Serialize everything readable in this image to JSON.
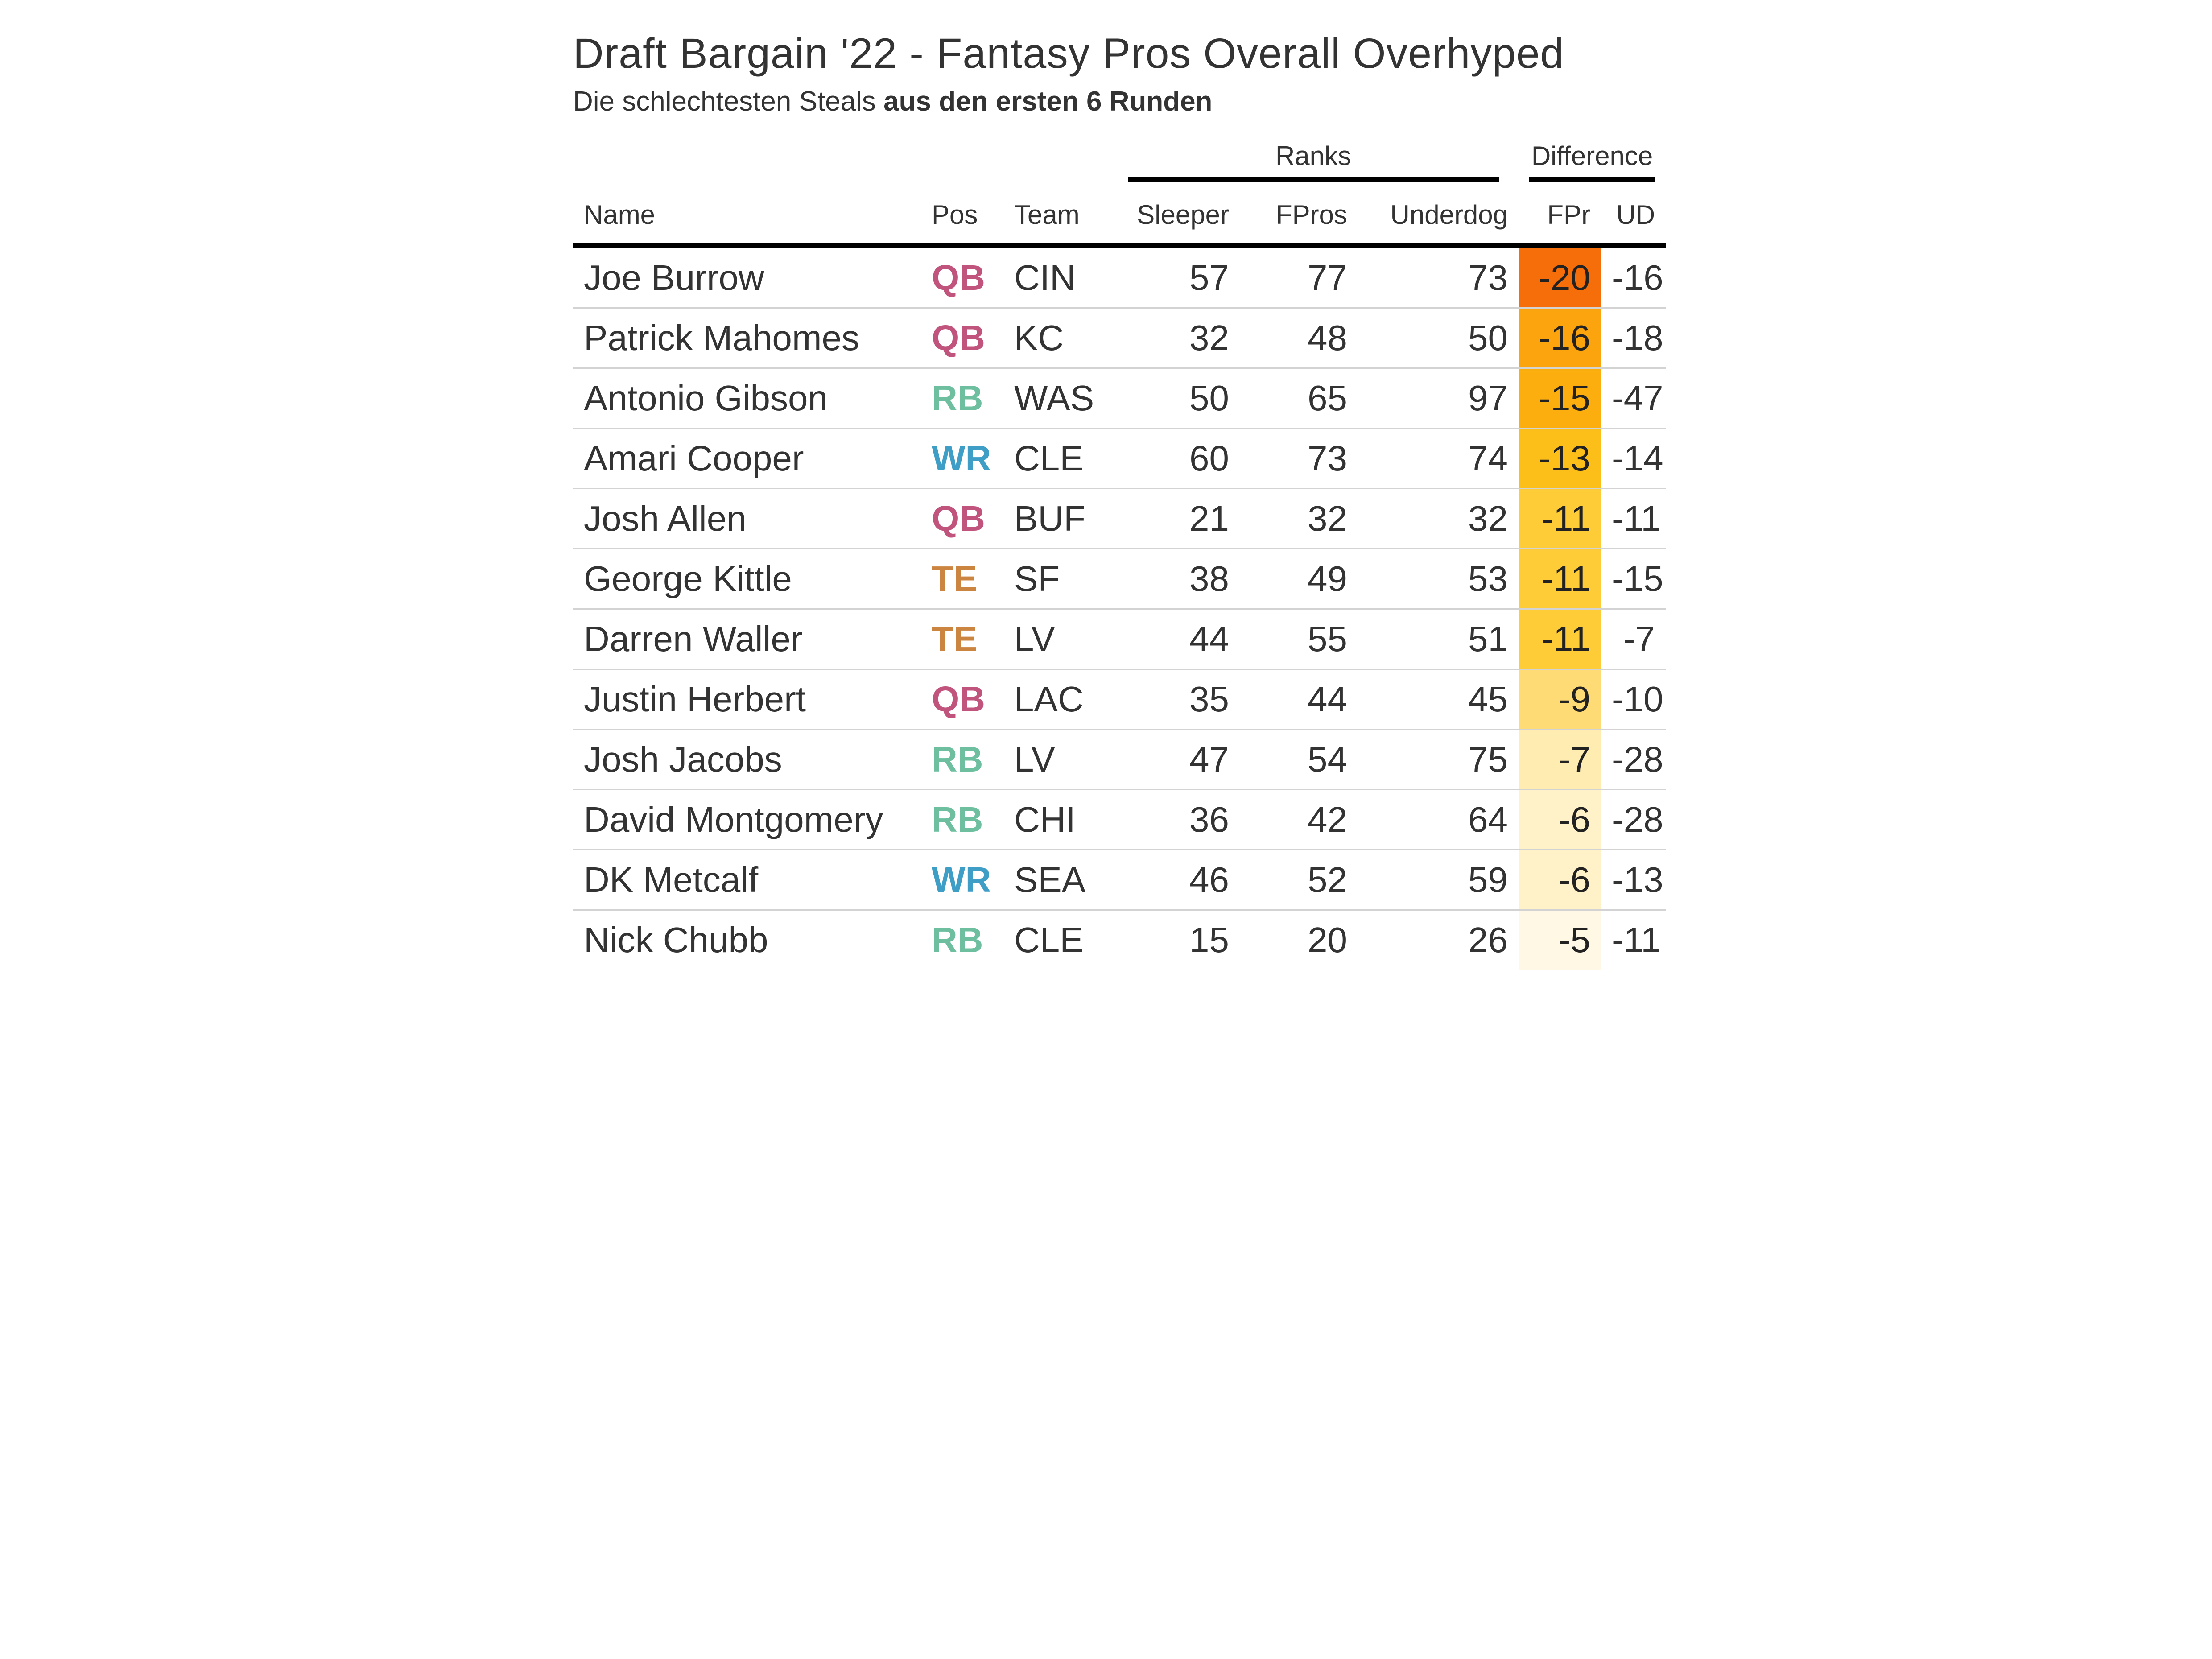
{
  "chart_data": {
    "type": "table",
    "title": "Draft Bargain '22 - Fantasy Pros Overall Overhyped",
    "subtitle_plain": "Die schlechtesten Steals ",
    "subtitle_bold": "aus den ersten 6 Runden",
    "spanners": {
      "ranks": "Ranks",
      "difference": "Difference"
    },
    "columns": [
      "Name",
      "Pos",
      "Team",
      "Sleeper",
      "FPros",
      "Underdog",
      "FPr",
      "UD"
    ],
    "position_colors": {
      "QB": "#c0547c",
      "RB": "#6dbfa0",
      "WR": "#3f9ec6",
      "TE": "#cc8540"
    },
    "fpr_color_scale": {
      "min_value": -20,
      "max_value": -5,
      "min_color": "#f66e0a",
      "mid_color": "#fcc62e",
      "max_color": "#fff8e4"
    },
    "rows": [
      {
        "name": "Joe Burrow",
        "pos": "QB",
        "team": "CIN",
        "sleeper": 57,
        "fpros": 77,
        "underdog": 73,
        "fpr": -20,
        "ud": -16,
        "fpr_color": "#f66e0a"
      },
      {
        "name": "Patrick Mahomes",
        "pos": "QB",
        "team": "KC",
        "sleeper": 32,
        "fpros": 48,
        "underdog": 50,
        "fpr": -16,
        "ud": -18,
        "fpr_color": "#fba40d"
      },
      {
        "name": "Antonio Gibson",
        "pos": "RB",
        "team": "WAS",
        "sleeper": 50,
        "fpros": 65,
        "underdog": 97,
        "fpr": -15,
        "ud": -47,
        "fpr_color": "#fcae0f"
      },
      {
        "name": "Amari Cooper",
        "pos": "WR",
        "team": "CLE",
        "sleeper": 60,
        "fpros": 73,
        "underdog": 74,
        "fpr": -13,
        "ud": -14,
        "fpr_color": "#fcbf1a"
      },
      {
        "name": "Josh Allen",
        "pos": "QB",
        "team": "BUF",
        "sleeper": 21,
        "fpros": 32,
        "underdog": 32,
        "fpr": -11,
        "ud": -11,
        "fpr_color": "#fdcc36"
      },
      {
        "name": "George Kittle",
        "pos": "TE",
        "team": "SF",
        "sleeper": 38,
        "fpros": 49,
        "underdog": 53,
        "fpr": -11,
        "ud": -15,
        "fpr_color": "#fdcc36"
      },
      {
        "name": "Darren Waller",
        "pos": "TE",
        "team": "LV",
        "sleeper": 44,
        "fpros": 55,
        "underdog": 51,
        "fpr": -11,
        "ud": -7,
        "fpr_color": "#fdcc36"
      },
      {
        "name": "Justin Herbert",
        "pos": "QB",
        "team": "LAC",
        "sleeper": 35,
        "fpros": 44,
        "underdog": 45,
        "fpr": -9,
        "ud": -10,
        "fpr_color": "#fedb74"
      },
      {
        "name": "Josh Jacobs",
        "pos": "RB",
        "team": "LV",
        "sleeper": 47,
        "fpros": 54,
        "underdog": 75,
        "fpr": -7,
        "ud": -28,
        "fpr_color": "#ffecb0"
      },
      {
        "name": "David Montgomery",
        "pos": "RB",
        "team": "CHI",
        "sleeper": 36,
        "fpros": 42,
        "underdog": 64,
        "fpr": -6,
        "ud": -28,
        "fpr_color": "#fff1c8"
      },
      {
        "name": "DK Metcalf",
        "pos": "WR",
        "team": "SEA",
        "sleeper": 46,
        "fpros": 52,
        "underdog": 59,
        "fpr": -6,
        "ud": -13,
        "fpr_color": "#fff1c8"
      },
      {
        "name": "Nick Chubb",
        "pos": "RB",
        "team": "CLE",
        "sleeper": 15,
        "fpros": 20,
        "underdog": 26,
        "fpr": -5,
        "ud": -11,
        "fpr_color": "#fff8e4"
      }
    ]
  }
}
